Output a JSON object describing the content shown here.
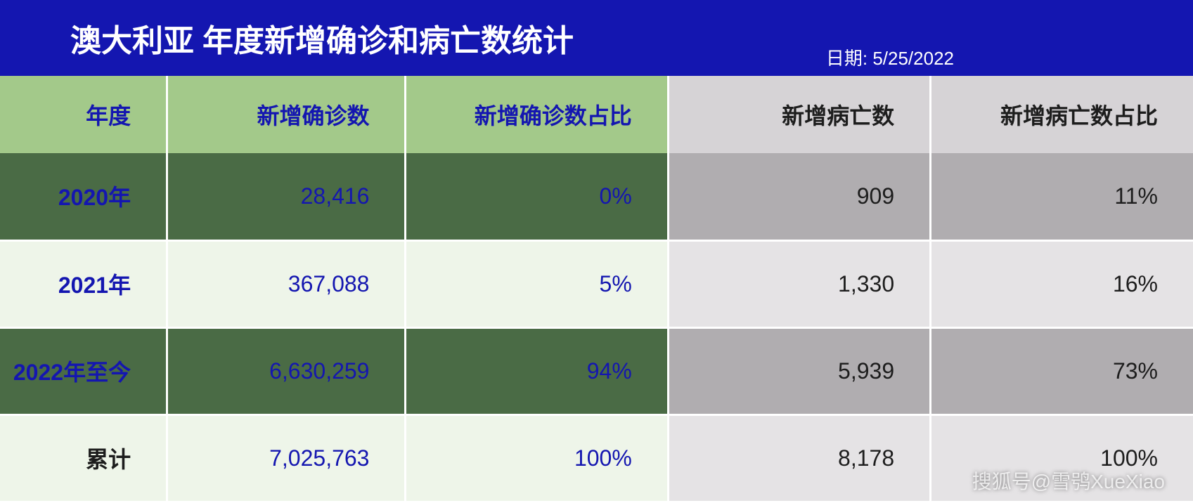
{
  "header": {
    "title_prefix": "澳大利亚",
    "title_suffix": "年度新增确诊和病亡数统计",
    "date_label": "日期: 5/25/2022"
  },
  "table": {
    "columns": [
      {
        "label": "年度",
        "style": "green"
      },
      {
        "label": "新增确诊数",
        "style": "green"
      },
      {
        "label": "新增确诊数占比",
        "style": "green"
      },
      {
        "label": "新增病亡数",
        "style": "gray"
      },
      {
        "label": "新增病亡数占比",
        "style": "gray"
      }
    ],
    "rows": [
      {
        "year": "2020年",
        "cases": "28,416",
        "cases_pct": "0%",
        "deaths": "909",
        "deaths_pct": "11%"
      },
      {
        "year": "2021年",
        "cases": "367,088",
        "cases_pct": "5%",
        "deaths": "1,330",
        "deaths_pct": "16%"
      },
      {
        "year": "2022年至今",
        "cases": "6,630,259",
        "cases_pct": "94%",
        "deaths": "5,939",
        "deaths_pct": "73%"
      },
      {
        "year": "累计",
        "cases": "7,025,763",
        "cases_pct": "100%",
        "deaths": "8,178",
        "deaths_pct": "100%"
      }
    ]
  },
  "watermark": "搜狐号@雪鸮XueXiao",
  "colors": {
    "header_bg": "#1416b0",
    "green_header": "#a3c98a",
    "gray_header": "#d6d3d6",
    "green_dark": "#4a6b45",
    "green_light": "#eef5e9",
    "gray_dark": "#b0adb0",
    "gray_light": "#e5e3e5",
    "text_blue": "#1416b0",
    "text_dark": "#1d1d1d",
    "text_white": "#ffffff"
  }
}
